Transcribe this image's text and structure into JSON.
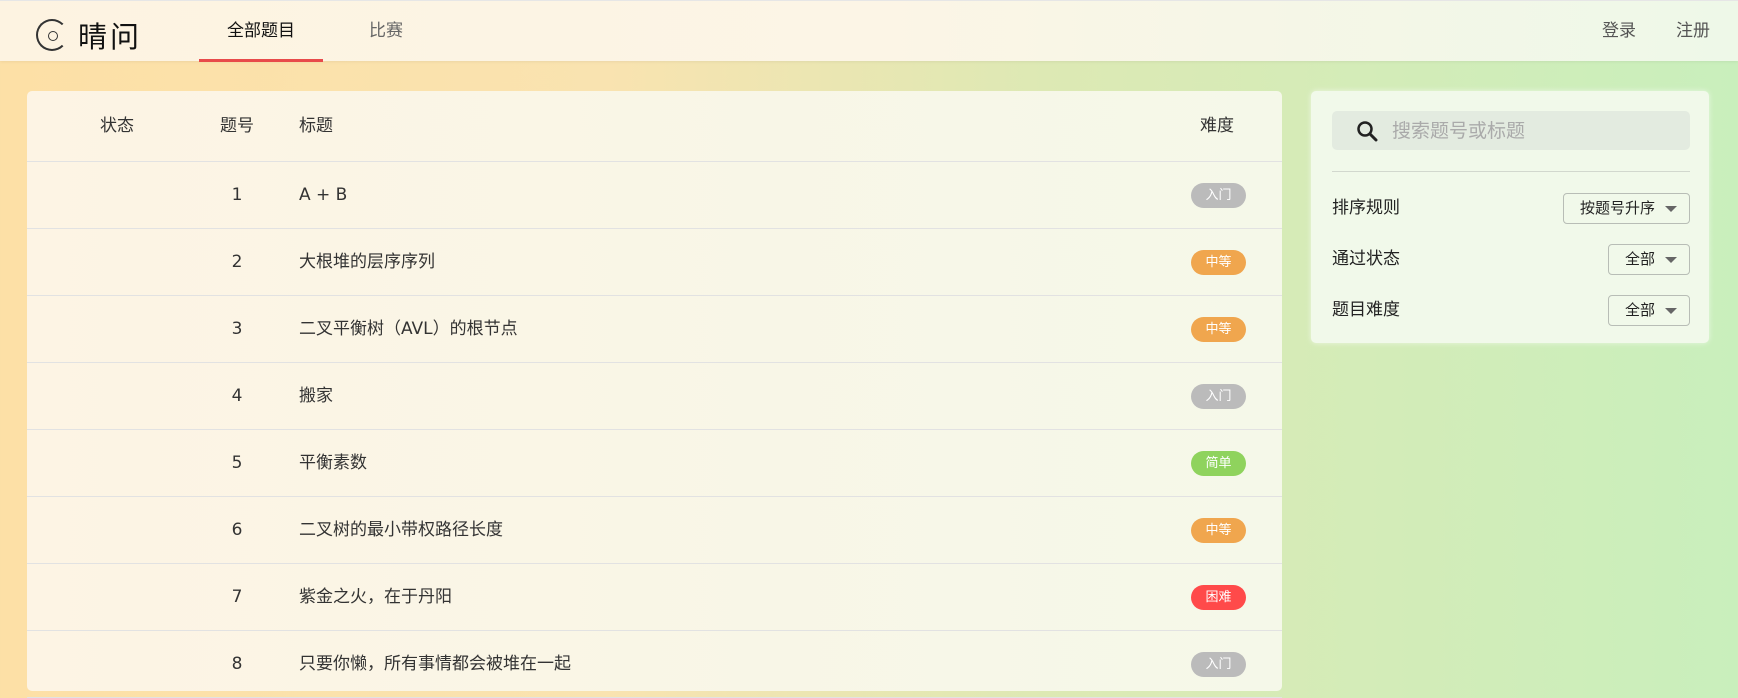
{
  "header": {
    "logo": "晴问",
    "tabs": [
      {
        "label": "全部题目",
        "active": true
      },
      {
        "label": "比赛",
        "active": false
      }
    ],
    "login": "登录",
    "register": "注册"
  },
  "table": {
    "columns": {
      "status": "状态",
      "id": "题号",
      "title": "标题",
      "difficulty": "难度"
    },
    "rows": [
      {
        "id": "1",
        "title": "A + B",
        "difficulty": "入门",
        "color": "#bbbbbb"
      },
      {
        "id": "2",
        "title": "大根堆的层序序列",
        "difficulty": "中等",
        "color": "#f0a64e"
      },
      {
        "id": "3",
        "title": "二叉平衡树（AVL）的根节点",
        "difficulty": "中等",
        "color": "#f0a64e"
      },
      {
        "id": "4",
        "title": "搬家",
        "difficulty": "入门",
        "color": "#bbbbbb"
      },
      {
        "id": "5",
        "title": "平衡素数",
        "difficulty": "简单",
        "color": "#8fd35d"
      },
      {
        "id": "6",
        "title": "二叉树的最小带权路径长度",
        "difficulty": "中等",
        "color": "#f0a64e"
      },
      {
        "id": "7",
        "title": "紫金之火，在于丹阳",
        "difficulty": "困难",
        "color": "#ff4a4a"
      },
      {
        "id": "8",
        "title": "只要你懒，所有事情都会被堆在一起",
        "difficulty": "入门",
        "color": "#bbbbbb"
      }
    ]
  },
  "sidebar": {
    "search": {
      "placeholder": "搜索题号或标题",
      "value": ""
    },
    "filters": [
      {
        "label": "排序规则",
        "value": "按题号升序"
      },
      {
        "label": "通过状态",
        "value": "全部"
      },
      {
        "label": "题目难度",
        "value": "全部"
      }
    ]
  }
}
